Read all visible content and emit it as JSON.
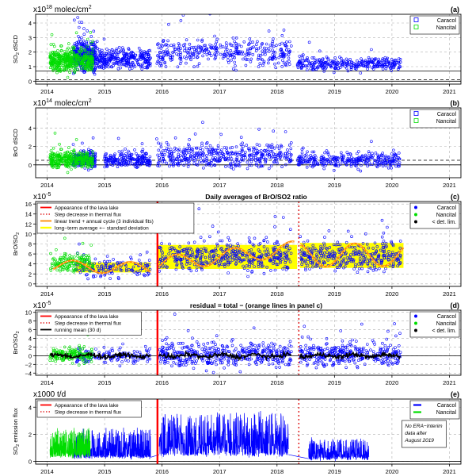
{
  "figure": {
    "x_ticks": [
      "2014",
      "2015",
      "2016",
      "2017",
      "2018",
      "2019",
      "2020",
      "2021"
    ],
    "colors": {
      "caracol": "#0000ff",
      "nancital": "#00dd00",
      "lava_lake": "#ff0000",
      "step_decrease": "#dd0000",
      "fit": "#ff8c00",
      "band": "#ffff00",
      "running_mean": "#000000",
      "grid": "#b0b0b0"
    }
  },
  "chart_data": [
    {
      "panel": "(a)",
      "type": "scatter",
      "title": "",
      "ylabel": "SO2 dSCD",
      "ylabel_main": "SO",
      "ylabel_sub": "2",
      "ylabel_rest": " dSCD",
      "scale": "x10",
      "scale_exp": "18",
      "unit": "molec/cm",
      "unit_sup": "2",
      "ylim": [
        -0.2,
        4.6
      ],
      "yticks": [
        "0",
        "1",
        "2",
        "3",
        "4"
      ],
      "ytick_values": [
        0,
        1,
        2,
        3,
        4
      ],
      "hlines": [
        {
          "y": 0,
          "style": "solid"
        },
        {
          "y": 0.7,
          "style": "solid"
        },
        {
          "y": 0.1,
          "style": "dashed"
        }
      ],
      "legend": [
        "Caracol",
        "Nancital"
      ],
      "legend_placement": "top-right",
      "series": [
        {
          "name": "Caracol",
          "color": "#0000ff",
          "segments": [
            {
              "x0": 2014.45,
              "x1": 2014.85,
              "mean": 1.7,
              "spread": 0.8,
              "density": 360
            },
            {
              "x0": 2014.85,
              "x1": 2015.8,
              "mean": 1.5,
              "spread": 0.55,
              "density": 300
            },
            {
              "x0": 2015.9,
              "x1": 2018.25,
              "mean": 2.0,
              "spread": 0.8,
              "density": 360
            },
            {
              "x0": 2018.35,
              "x1": 2020.15,
              "mean": 1.2,
              "spread": 0.35,
              "density": 300
            }
          ]
        },
        {
          "name": "Nancital",
          "color": "#00dd00",
          "segments": [
            {
              "x0": 2014.05,
              "x1": 2014.8,
              "mean": 1.4,
              "spread": 0.6,
              "density": 420
            }
          ]
        }
      ]
    },
    {
      "panel": "(b)",
      "type": "scatter",
      "title": "",
      "ylabel": "BrO dSCD",
      "ylabel_main": "BrO dSCD",
      "ylabel_sub": "",
      "ylabel_rest": "",
      "scale": "x10",
      "scale_exp": "14",
      "unit": "molec/cm",
      "unit_sup": "2",
      "ylim": [
        -1.4,
        6.2
      ],
      "yticks": [
        "0",
        "2",
        "4"
      ],
      "ytick_values": [
        0,
        2,
        4
      ],
      "hlines": [
        {
          "y": 0,
          "style": "solid"
        },
        {
          "y": 0.5,
          "style": "dashed"
        }
      ],
      "legend": [
        "Caracol",
        "Nancital"
      ],
      "legend_placement": "top-right",
      "series": [
        {
          "name": "Caracol",
          "color": "#0000ff",
          "segments": [
            {
              "x0": 2014.45,
              "x1": 2014.85,
              "mean": 0.6,
              "spread": 0.7,
              "density": 240
            },
            {
              "x0": 2015.0,
              "x1": 2015.8,
              "mean": 0.5,
              "spread": 0.6,
              "density": 200
            },
            {
              "x0": 2015.9,
              "x1": 2018.25,
              "mean": 1.0,
              "spread": 1.1,
              "density": 420
            },
            {
              "x0": 2018.35,
              "x1": 2020.15,
              "mean": 0.6,
              "spread": 0.7,
              "density": 300
            }
          ]
        },
        {
          "name": "Nancital",
          "color": "#00dd00",
          "segments": [
            {
              "x0": 2014.05,
              "x1": 2014.8,
              "mean": 0.5,
              "spread": 0.7,
              "density": 320
            }
          ]
        }
      ]
    },
    {
      "panel": "(c)",
      "type": "scatter",
      "title": "Daily averages of BrO/SO2 ratio",
      "ylabel": "BrO/SO2",
      "ylabel_main": "BrO/SO",
      "ylabel_sub": "2",
      "ylabel_rest": "",
      "scale": "x10",
      "scale_exp": "-5",
      "unit": "",
      "unit_sup": "",
      "ylim": [
        -0.5,
        16.5
      ],
      "yticks": [
        "0",
        "2",
        "4",
        "6",
        "8",
        "10",
        "12",
        "14",
        "16"
      ],
      "ytick_values": [
        0,
        2,
        4,
        6,
        8,
        10,
        12,
        14,
        16
      ],
      "vlines": [
        {
          "x": 2015.92,
          "style": "solid",
          "color": "#ff0000"
        },
        {
          "x": 2018.38,
          "style": "dotted",
          "color": "#dd0000"
        }
      ],
      "legend_left": [
        "Appearance of the lava lake",
        "Step decrease in thermal flux",
        "linear trend + annual cycle (3 individual fits)",
        "long−term average +− standard deviation"
      ],
      "legend_right": [
        "Caracol",
        "Nancital",
        "< det. lim."
      ],
      "bands": [
        {
          "x0": 2014.5,
          "x1": 2015.8,
          "y0": 2.3,
          "y1": 4.3
        },
        {
          "x0": 2015.92,
          "x1": 2018.35,
          "y0": 3.0,
          "y1": 7.8
        },
        {
          "x0": 2018.4,
          "x1": 2020.2,
          "y0": 3.2,
          "y1": 8.2
        }
      ],
      "fits": [
        {
          "x0": 2014.1,
          "x1": 2015.8,
          "a": 3.6,
          "b": -0.3,
          "amp": 1.2,
          "phase": 0.2
        },
        {
          "x0": 2015.95,
          "x1": 2018.3,
          "a": 4.0,
          "b": 1.3,
          "amp": 1.5,
          "phase": 0.0
        },
        {
          "x0": 2018.4,
          "x1": 2020.2,
          "a": 5.7,
          "b": 0.1,
          "amp": 2.3,
          "phase": 0.1
        }
      ],
      "series": [
        {
          "name": "Caracol",
          "color": "#0000ff",
          "segments": [
            {
              "x0": 2014.5,
              "x1": 2015.8,
              "mean": 3.2,
              "spread": 1.6,
              "density": 140
            },
            {
              "x0": 2015.95,
              "x1": 2018.25,
              "mean": 5.5,
              "spread": 2.4,
              "density": 420
            },
            {
              "x0": 2018.4,
              "x1": 2020.15,
              "mean": 5.5,
              "spread": 2.4,
              "density": 320
            }
          ]
        },
        {
          "name": "Nancital",
          "color": "#00dd00",
          "segments": [
            {
              "x0": 2014.05,
              "x1": 2014.8,
              "mean": 4.2,
              "spread": 1.5,
              "density": 160
            }
          ]
        }
      ]
    },
    {
      "panel": "(d)",
      "type": "scatter",
      "title": "residual = total − (orange lines in panel c)",
      "ylabel": "BrO/SO2",
      "ylabel_main": "BrO/SO",
      "ylabel_sub": "2",
      "ylabel_rest": "",
      "scale": "x10",
      "scale_exp": "-5",
      "unit": "",
      "unit_sup": "",
      "ylim": [
        -4.5,
        10.5
      ],
      "yticks": [
        "−4",
        "−2",
        "0",
        "2",
        "4",
        "6",
        "8",
        "10"
      ],
      "ytick_values": [
        -4,
        -2,
        0,
        2,
        4,
        6,
        8,
        10
      ],
      "hlines": [
        {
          "y": 0,
          "style": "solid"
        }
      ],
      "vlines": [
        {
          "x": 2015.92,
          "style": "solid",
          "color": "#ff0000"
        },
        {
          "x": 2018.38,
          "style": "dotted",
          "color": "#dd0000"
        }
      ],
      "legend_left": [
        "Appearance of the lava lake",
        "Step decrease in thermal flux",
        "running mean (30 d)"
      ],
      "legend_right": [
        "Caracol",
        "Nancital",
        "< det. lim."
      ],
      "series": [
        {
          "name": "Caracol",
          "color": "#0000ff",
          "segments": [
            {
              "x0": 2014.5,
              "x1": 2015.8,
              "mean": 0.0,
              "spread": 1.5,
              "density": 140
            },
            {
              "x0": 2015.95,
              "x1": 2018.25,
              "mean": 0.3,
              "spread": 2.2,
              "density": 420
            },
            {
              "x0": 2018.4,
              "x1": 2020.15,
              "mean": 0.2,
              "spread": 2.2,
              "density": 320
            }
          ]
        },
        {
          "name": "Nancital",
          "color": "#00dd00",
          "segments": [
            {
              "x0": 2014.05,
              "x1": 2014.8,
              "mean": 0.2,
              "spread": 1.4,
              "density": 160
            }
          ]
        }
      ]
    },
    {
      "panel": "(e)",
      "type": "line",
      "title": "",
      "ylabel": "SO2 emission flux",
      "ylabel_main": "SO",
      "ylabel_sub": "2",
      "ylabel_rest": " emission flux",
      "scale": "x1000 t/d",
      "scale_exp": "",
      "unit": "",
      "unit_sup": "",
      "ylim": [
        -0.2,
        4.6
      ],
      "yticks": [
        "0",
        "2",
        "4"
      ],
      "ytick_values": [
        0,
        2,
        4
      ],
      "hlines": [
        {
          "y": 0,
          "style": "solid"
        }
      ],
      "vlines": [
        {
          "x": 2015.92,
          "style": "solid",
          "color": "#ff0000"
        },
        {
          "x": 2018.38,
          "style": "dotted",
          "color": "#dd0000"
        }
      ],
      "legend_left": [
        "Appearance of the lava lake",
        "Step decrease in thermal flux"
      ],
      "legend": [
        "Caracol",
        "Nancital"
      ],
      "legend_placement": "top-right",
      "annotation": [
        "No ERA−Interim",
        "data after",
        "August 2019"
      ],
      "series": [
        {
          "name": "Caracol",
          "color": "#0000ff",
          "segments": [
            {
              "x0": 2014.45,
              "x1": 2015.8,
              "base": 0.3,
              "peak": 2.4,
              "density": 520
            },
            {
              "x0": 2015.95,
              "x1": 2018.2,
              "base": 0.5,
              "peak": 3.6,
              "density": 700
            },
            {
              "x0": 2018.55,
              "x1": 2019.6,
              "base": 0.2,
              "peak": 1.7,
              "density": 380
            }
          ]
        },
        {
          "name": "Nancital",
          "color": "#00dd00",
          "segments": [
            {
              "x0": 2014.05,
              "x1": 2014.75,
              "base": 0.4,
              "peak": 2.4,
              "density": 360
            }
          ]
        }
      ]
    }
  ]
}
